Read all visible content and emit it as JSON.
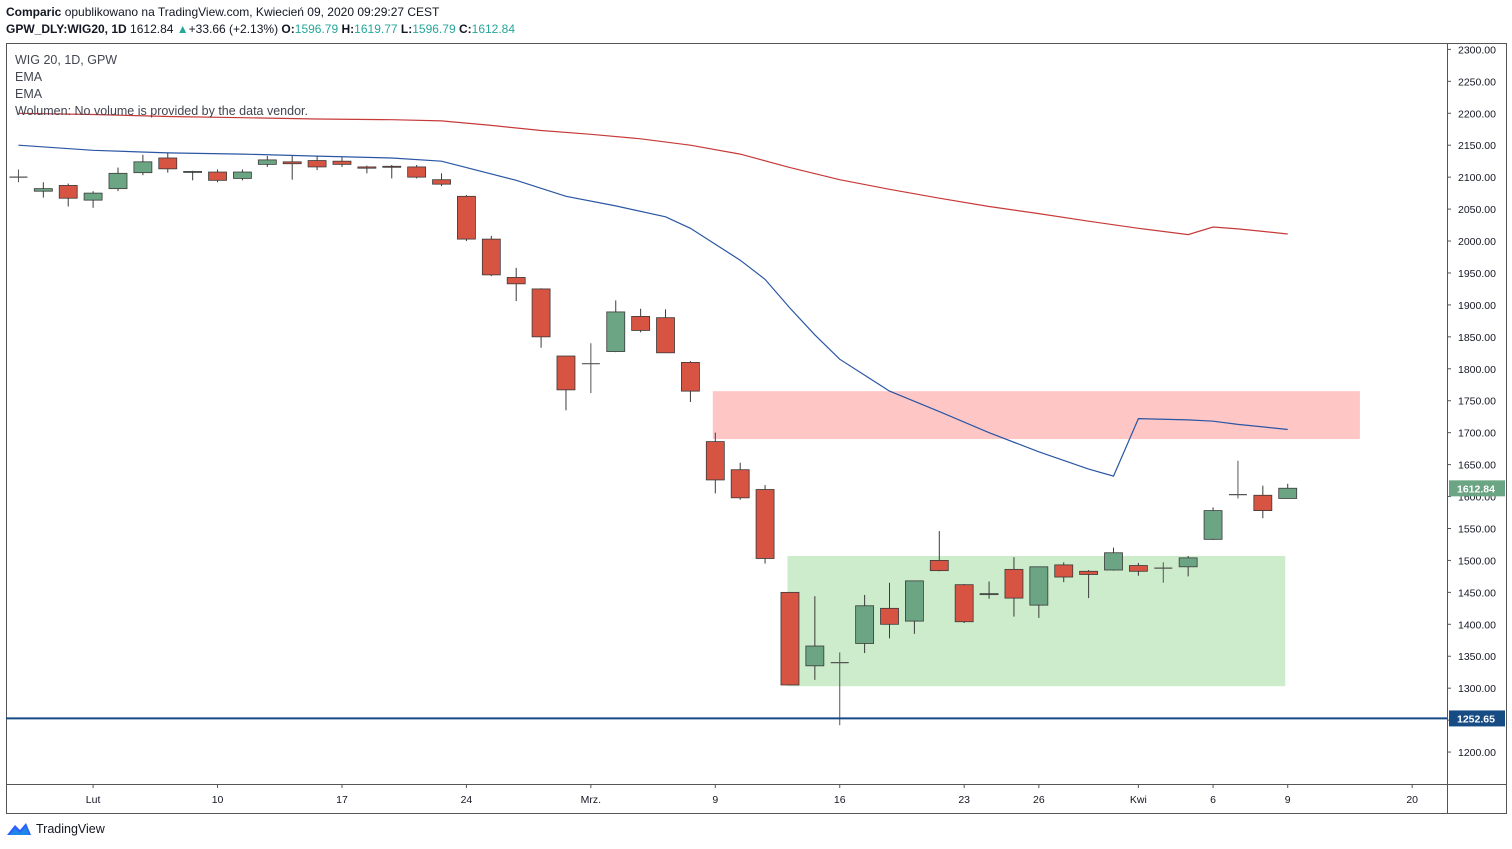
{
  "header": {
    "author": "Comparic",
    "published": "opublikowano na TradingView.com, Kwiecień 09, 2020 09:29:27 CEST",
    "symbol": "GPW_DLY:WIG20, 1D",
    "last": "1612.84",
    "arrow": "▲",
    "change": "+33.66 (+2.13%)",
    "o_label": "O:",
    "o_value": "1596.79",
    "h_label": "H:",
    "h_value": "1619.77",
    "l_label": "L:",
    "l_value": "1596.79",
    "c_label": "C:",
    "c_value": "1612.84"
  },
  "legend": {
    "title": "WIG 20, 1D, GPW",
    "ema1": "EMA",
    "ema2": "EMA",
    "volume": "Wolumen: No volume is provided by the data vendor."
  },
  "footer": {
    "brand": "TradingView"
  },
  "colors": {
    "up": "#6ba583",
    "down": "#d75442",
    "ema_fast": "#2a56a3",
    "ema_slow": "#c73a3a",
    "support": "#164b84",
    "resist_zone": "#ffc6c6",
    "support_zone": "#cdeccb",
    "axis": "#555555"
  },
  "chart_data": {
    "type": "candlestick",
    "ylim": [
      1150,
      2310
    ],
    "y_ticks": [
      "1200.00",
      "1250.00",
      "1300.00",
      "1350.00",
      "1400.00",
      "1450.00",
      "1500.00",
      "1550.00",
      "1600.00",
      "1650.00",
      "1700.00",
      "1750.00",
      "1800.00",
      "1850.00",
      "1900.00",
      "1950.00",
      "2000.00",
      "2050.00",
      "2100.00",
      "2150.00",
      "2200.00",
      "2250.00",
      "2300.00"
    ],
    "x_labels": [
      {
        "i": 3,
        "text": "Lut"
      },
      {
        "i": 8,
        "text": "10"
      },
      {
        "i": 13,
        "text": "17"
      },
      {
        "i": 18,
        "text": "24"
      },
      {
        "i": 23,
        "text": "Mrz."
      },
      {
        "i": 28,
        "text": "9"
      },
      {
        "i": 33,
        "text": "16"
      },
      {
        "i": 38,
        "text": "23"
      },
      {
        "i": 41,
        "text": "26"
      },
      {
        "i": 45,
        "text": "Kwi"
      },
      {
        "i": 48,
        "text": "6"
      },
      {
        "i": 51,
        "text": "9"
      },
      {
        "i": 56,
        "text": "20"
      }
    ],
    "x_domain": [
      -0.5,
      57.4
    ],
    "candles": [
      {
        "o": 2100,
        "h": 2112,
        "l": 2092,
        "c": 2100
      },
      {
        "o": 2078,
        "h": 2092,
        "l": 2068,
        "c": 2082
      },
      {
        "o": 2087,
        "h": 2090,
        "l": 2054,
        "c": 2067
      },
      {
        "o": 2064,
        "h": 2078,
        "l": 2052,
        "c": 2075
      },
      {
        "o": 2082,
        "h": 2115,
        "l": 2078,
        "c": 2106
      },
      {
        "o": 2107,
        "h": 2135,
        "l": 2103,
        "c": 2124
      },
      {
        "o": 2130,
        "h": 2138,
        "l": 2107,
        "c": 2113
      },
      {
        "o": 2108,
        "h": 2110,
        "l": 2095,
        "c": 2109
      },
      {
        "o": 2108,
        "h": 2112,
        "l": 2092,
        "c": 2095
      },
      {
        "o": 2098,
        "h": 2112,
        "l": 2095,
        "c": 2108
      },
      {
        "o": 2120,
        "h": 2133,
        "l": 2116,
        "c": 2127
      },
      {
        "o": 2124,
        "h": 2133,
        "l": 2096,
        "c": 2121
      },
      {
        "o": 2126,
        "h": 2133,
        "l": 2111,
        "c": 2116
      },
      {
        "o": 2125,
        "h": 2131,
        "l": 2116,
        "c": 2120
      },
      {
        "o": 2116,
        "h": 2118,
        "l": 2106,
        "c": 2114
      },
      {
        "o": 2117,
        "h": 2119,
        "l": 2098,
        "c": 2116
      },
      {
        "o": 2116,
        "h": 2119,
        "l": 2098,
        "c": 2100
      },
      {
        "o": 2096,
        "h": 2106,
        "l": 2086,
        "c": 2089
      },
      {
        "o": 2070,
        "h": 2072,
        "l": 2000,
        "c": 2003
      },
      {
        "o": 2003,
        "h": 2008,
        "l": 1945,
        "c": 1947
      },
      {
        "o": 1943,
        "h": 1958,
        "l": 1906,
        "c": 1933
      },
      {
        "o": 1925,
        "h": 1926,
        "l": 1833,
        "c": 1850
      },
      {
        "o": 1820,
        "h": 1820,
        "l": 1735,
        "c": 1767
      },
      {
        "o": 1808,
        "h": 1840,
        "l": 1762,
        "c": 1808
      },
      {
        "o": 1827,
        "h": 1907,
        "l": 1826,
        "c": 1889
      },
      {
        "o": 1882,
        "h": 1894,
        "l": 1857,
        "c": 1860
      },
      {
        "o": 1880,
        "h": 1893,
        "l": 1825,
        "c": 1825
      },
      {
        "o": 1810,
        "h": 1812,
        "l": 1748,
        "c": 1765
      },
      {
        "o": 1686,
        "h": 1700,
        "l": 1605,
        "c": 1626
      },
      {
        "o": 1642,
        "h": 1653,
        "l": 1595,
        "c": 1598
      },
      {
        "o": 1611,
        "h": 1618,
        "l": 1495,
        "c": 1503
      },
      {
        "o": 1450,
        "h": 1450,
        "l": 1305,
        "c": 1305
      },
      {
        "o": 1335,
        "h": 1444,
        "l": 1313,
        "c": 1366
      },
      {
        "o": 1340,
        "h": 1356,
        "l": 1242,
        "c": 1340
      },
      {
        "o": 1370,
        "h": 1446,
        "l": 1355,
        "c": 1429
      },
      {
        "o": 1425,
        "h": 1465,
        "l": 1378,
        "c": 1400
      },
      {
        "o": 1405,
        "h": 1468,
        "l": 1385,
        "c": 1468
      },
      {
        "o": 1500,
        "h": 1546,
        "l": 1483,
        "c": 1484
      },
      {
        "o": 1462,
        "h": 1463,
        "l": 1402,
        "c": 1404
      },
      {
        "o": 1447,
        "h": 1467,
        "l": 1440,
        "c": 1448
      },
      {
        "o": 1486,
        "h": 1505,
        "l": 1412,
        "c": 1441
      },
      {
        "o": 1430,
        "h": 1490,
        "l": 1410,
        "c": 1490
      },
      {
        "o": 1493,
        "h": 1497,
        "l": 1466,
        "c": 1474
      },
      {
        "o": 1483,
        "h": 1485,
        "l": 1441,
        "c": 1478
      },
      {
        "o": 1485,
        "h": 1520,
        "l": 1484,
        "c": 1512
      },
      {
        "o": 1492,
        "h": 1496,
        "l": 1476,
        "c": 1483
      },
      {
        "o": 1488,
        "h": 1497,
        "l": 1465,
        "c": 1488
      },
      {
        "o": 1490,
        "h": 1507,
        "l": 1475,
        "c": 1504
      },
      {
        "o": 1533,
        "h": 1583,
        "l": 1532,
        "c": 1578
      },
      {
        "o": 1603,
        "h": 1656,
        "l": 1597,
        "c": 1603
      },
      {
        "o": 1602,
        "h": 1617,
        "l": 1566,
        "c": 1578
      },
      {
        "o": 1597,
        "h": 1620,
        "l": 1597,
        "c": 1613
      }
    ],
    "ema_fast": [
      [
        0,
        2150
      ],
      [
        3,
        2142
      ],
      [
        6,
        2138
      ],
      [
        9,
        2136
      ],
      [
        12,
        2133
      ],
      [
        15,
        2130
      ],
      [
        17,
        2125
      ],
      [
        18,
        2115
      ],
      [
        20,
        2095
      ],
      [
        22,
        2070
      ],
      [
        24,
        2055
      ],
      [
        26,
        2038
      ],
      [
        27,
        2020
      ],
      [
        28,
        1995
      ],
      [
        29,
        1970
      ],
      [
        30,
        1940
      ],
      [
        31,
        1895
      ],
      [
        32,
        1853
      ],
      [
        33,
        1815
      ],
      [
        35,
        1765
      ],
      [
        37,
        1733
      ],
      [
        39,
        1700
      ],
      [
        41,
        1670
      ],
      [
        43,
        1643
      ],
      [
        45,
        1722
      ],
      [
        45.6,
        1722
      ],
      [
        47,
        1720
      ],
      [
        48,
        1718
      ],
      [
        49,
        1713
      ],
      [
        50,
        1709
      ],
      [
        51,
        1705
      ]
    ],
    "ema_slow": [
      [
        0,
        2200
      ],
      [
        3,
        2198
      ],
      [
        6,
        2195
      ],
      [
        9,
        2193
      ],
      [
        12,
        2191
      ],
      [
        15,
        2190
      ],
      [
        17,
        2188
      ],
      [
        19,
        2181
      ],
      [
        21,
        2173
      ],
      [
        23,
        2167
      ],
      [
        25,
        2160
      ],
      [
        27,
        2150
      ],
      [
        29,
        2136
      ],
      [
        31,
        2115
      ],
      [
        33,
        2096
      ],
      [
        35,
        2081
      ],
      [
        37,
        2067
      ],
      [
        39,
        2054
      ],
      [
        41,
        2043
      ],
      [
        43,
        2031
      ],
      [
        45,
        2020
      ],
      [
        47,
        2010
      ],
      [
        48,
        2022
      ],
      [
        49,
        2019
      ],
      [
        50,
        2015
      ],
      [
        51,
        2011
      ]
    ],
    "support_level": 1252.65,
    "support_label": "1252.65",
    "last_label": "1612.84",
    "resistance_zone": {
      "x0": 27.9,
      "x1": 53.9,
      "y_low": 1690,
      "y_high": 1765
    },
    "support_zone": {
      "x0": 30.9,
      "x1": 50.9,
      "y_low": 1303,
      "y_high": 1507
    }
  }
}
